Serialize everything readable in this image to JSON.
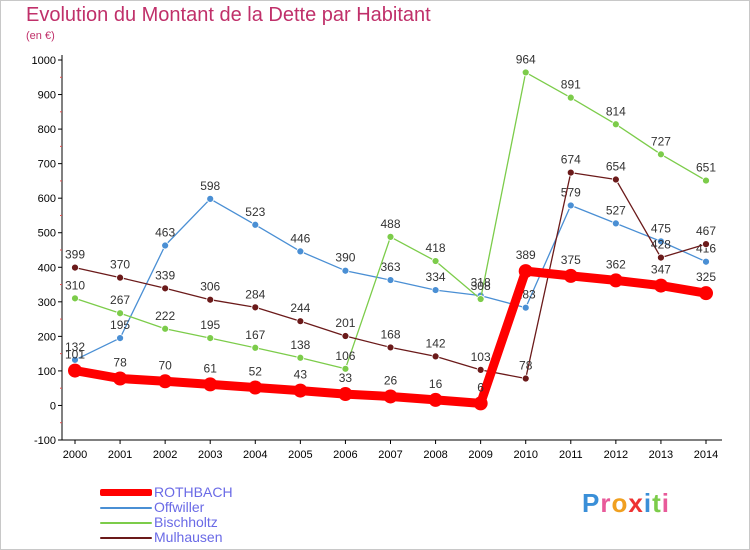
{
  "title": "Evolution du Montant de la Dette par Habitant",
  "subtitle": "(en €)",
  "logo": "Proxiti",
  "chart_data": {
    "type": "line",
    "x": [
      "2000",
      "2001",
      "2002",
      "2003",
      "2004",
      "2005",
      "2006",
      "2007",
      "2008",
      "2009",
      "2010",
      "2011",
      "2012",
      "2013",
      "2014"
    ],
    "ylim": [
      -100,
      1000
    ],
    "yticks": [
      -100,
      0,
      100,
      200,
      300,
      400,
      500,
      600,
      700,
      800,
      900,
      1000
    ],
    "grid": false,
    "legend_position": "bottom-left",
    "series": [
      {
        "name": "ROTHBACH",
        "color": "#ff0000",
        "values": [
          101,
          78,
          70,
          61,
          52,
          43,
          33,
          26,
          16,
          6,
          389,
          375,
          362,
          347,
          325
        ]
      },
      {
        "name": "Offwiller",
        "color": "#4a8fd4",
        "values": [
          132,
          195,
          463,
          598,
          523,
          446,
          390,
          363,
          334,
          318,
          283,
          579,
          527,
          475,
          416
        ]
      },
      {
        "name": "Bischholtz",
        "color": "#7ccc4a",
        "values": [
          310,
          267,
          222,
          195,
          167,
          138,
          106,
          488,
          418,
          308,
          964,
          891,
          814,
          727,
          651
        ]
      },
      {
        "name": "Mulhausen",
        "color": "#6b1a1a",
        "values": [
          399,
          370,
          339,
          306,
          284,
          244,
          201,
          168,
          142,
          103,
          78,
          674,
          654,
          428,
          467
        ]
      }
    ]
  }
}
